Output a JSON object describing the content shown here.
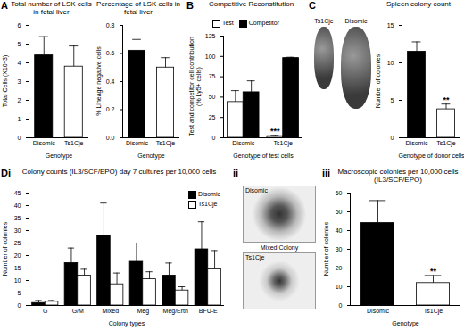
{
  "chart_data": [
    {
      "panel": "A",
      "type": "bar",
      "title": "Total number of LSK cells in fetal liver",
      "categories": [
        "Disomic",
        "Ts1Cje"
      ],
      "values": [
        4.4,
        3.8
      ],
      "errors": [
        1.0,
        1.1
      ],
      "colors": [
        "#000000",
        "#ffffff"
      ],
      "y_label": "Total Cells (X10^3)",
      "x_label": "Genotype",
      "ylim": [
        0,
        6
      ],
      "yticks": [
        0,
        1,
        2,
        3,
        4,
        5,
        6
      ]
    },
    {
      "type": "bar",
      "title": "Percentage of LSK cells in fetal liver",
      "categories": [
        "Disomic",
        "Ts1Cje"
      ],
      "values": [
        0.62,
        0.5
      ],
      "errors": [
        0.08,
        0.07
      ],
      "colors": [
        "#000000",
        "#ffffff"
      ],
      "y_label": "% Lineage negative cells",
      "x_label": "Genotype",
      "ylim": [
        0,
        0.8
      ],
      "yticks": [
        {
          "value": 0,
          "label": "0.0"
        },
        0.2,
        0.4,
        0.6,
        0.8
      ]
    },
    {
      "panel": "B",
      "type": "bar",
      "title": "Competitive Reconstitution",
      "categories": [
        "Disomic",
        "Ts1Cje"
      ],
      "series": [
        {
          "name": "Test",
          "color": "#ffffff",
          "values": [
            44,
            2
          ],
          "errors": [
            14,
            1
          ]
        },
        {
          "name": "Competitor",
          "color": "#000000",
          "values": [
            56,
            98
          ],
          "errors": [
            14,
            1
          ]
        }
      ],
      "y_label": "Test and competitor cell contribution (% Ly5+ cells)",
      "x_label": "Genotype of test cells",
      "ylim": [
        0,
        125
      ],
      "yticks": [
        0,
        25,
        50,
        75,
        100,
        125
      ],
      "legend": "top",
      "annotations": [
        {
          "category": "Ts1Cje",
          "series": "Test",
          "text": "***"
        }
      ]
    },
    {
      "type": "bar",
      "title": "Spleen colony count",
      "categories": [
        "Disomic",
        "Ts1Cje"
      ],
      "values": [
        11.5,
        3.8
      ],
      "errors": [
        1.3,
        0.7
      ],
      "colors": [
        "#000000",
        "#ffffff"
      ],
      "y_label": "Number of colonies",
      "x_label": "Genotype of donor cells",
      "ylim": [
        0,
        15
      ],
      "yticks": [
        0,
        5,
        10,
        15
      ],
      "annotations": [
        {
          "category": "Ts1Cje",
          "text": "**"
        }
      ]
    },
    {
      "panel": "Di",
      "type": "bar",
      "title": "Colony counts (IL3/SCF/EPO) day 7 cultures per 10,000 cells",
      "categories": [
        "G",
        "G/M",
        "Mixed",
        "Meg",
        "Meg/Erth",
        "BFU-E"
      ],
      "series": [
        {
          "name": "Disomic",
          "color": "#000000",
          "values": [
            1,
            17,
            28,
            17.5,
            12,
            22.5
          ],
          "errors": [
            1,
            6,
            13,
            7.5,
            5,
            11
          ]
        },
        {
          "name": "Ts1Cje",
          "color": "#ffffff",
          "values": [
            1.5,
            12,
            8.5,
            10.5,
            6,
            14.5
          ],
          "errors": [
            0.5,
            2.5,
            4.5,
            3,
            1.5,
            7.5
          ]
        }
      ],
      "y_label": "Number of colonies",
      "x_label": "Colony types",
      "ylim": [
        0,
        45
      ],
      "yticks": [
        0,
        5,
        10,
        15,
        20,
        25,
        30,
        35,
        40,
        45
      ],
      "legend": "top-right"
    },
    {
      "panel": "iii",
      "type": "bar",
      "title": "Macroscopic colonies per 10,000 cells (IL3/SCF/EPO)",
      "categories": [
        "Disomic",
        "Ts1Cje"
      ],
      "values": [
        44,
        12
      ],
      "errors": [
        12,
        4
      ],
      "colors": [
        "#000000",
        "#ffffff"
      ],
      "y_label": "Number of colonies",
      "x_label": "Genotype",
      "ylim": [
        0,
        60
      ],
      "yticks": [
        0,
        10,
        20,
        30,
        40,
        50,
        60
      ],
      "annotations": [
        {
          "category": "Ts1Cje",
          "text": "**"
        }
      ]
    }
  ],
  "images": [
    {
      "panel": "C",
      "labels": [
        "Ts1Cje",
        "Disomic"
      ]
    },
    {
      "panel": "ii",
      "title": "Mixed Colony",
      "labels": [
        "Disomic",
        "Ts1Cje"
      ]
    }
  ]
}
